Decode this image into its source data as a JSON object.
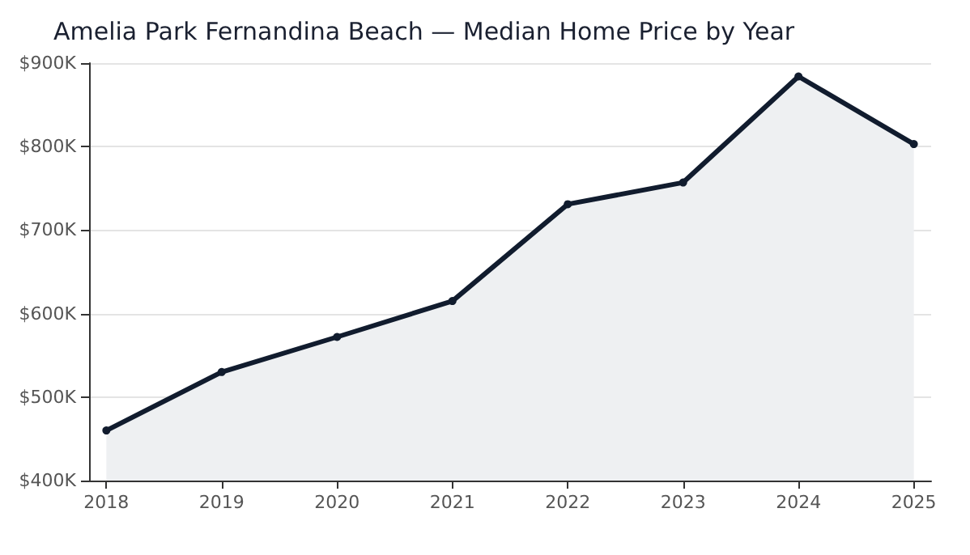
{
  "chart_data": {
    "type": "area",
    "title": "Amelia Park Fernandina Beach — Median Home Price by Year",
    "x": [
      2018,
      2019,
      2020,
      2021,
      2022,
      2023,
      2024,
      2025
    ],
    "series": [
      {
        "color": "#111c2e",
        "values": [
          460000,
          530000,
          572000,
          615000,
          731000,
          757000,
          884000,
          803000
        ]
      }
    ],
    "xlim": [
      2017.85,
      2025.15
    ],
    "xticks": [
      2018,
      2019,
      2020,
      2021,
      2022,
      2023,
      2024,
      2025
    ],
    "ylim": [
      400000,
      900000
    ],
    "yticks": [
      {
        "value": 400000,
        "label": "$400K"
      },
      {
        "value": 500000,
        "label": "$500K"
      },
      {
        "value": 600000,
        "label": "$600K"
      },
      {
        "value": 700000,
        "label": "$700K"
      },
      {
        "value": 800000,
        "label": "$800K"
      },
      {
        "value": 900000,
        "label": "$900K"
      }
    ],
    "grid": "y",
    "marker": "circle",
    "line_style": "solid"
  }
}
